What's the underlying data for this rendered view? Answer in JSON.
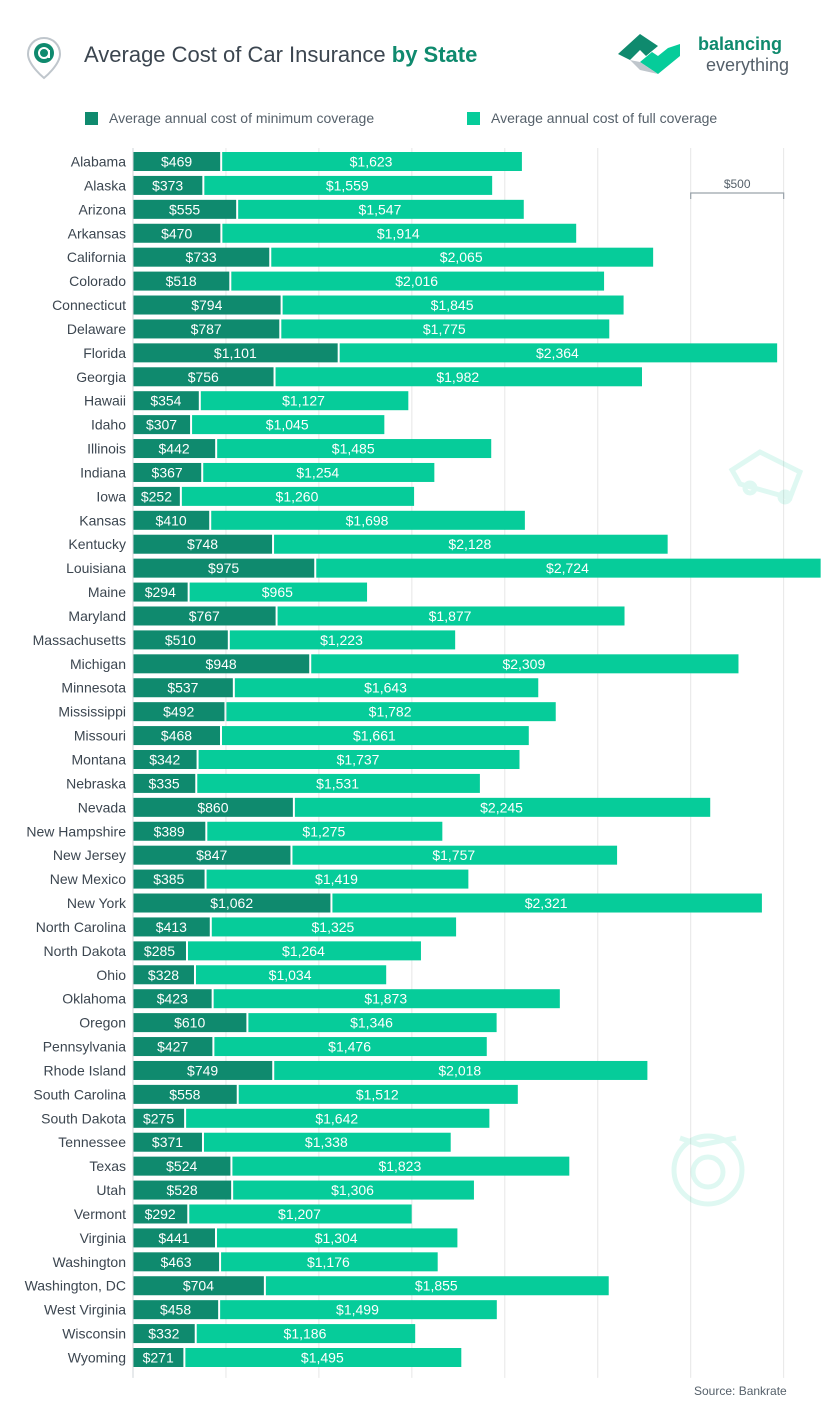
{
  "header": {
    "title_plain": "Average Cost of Car Insurance ",
    "title_bold": "by State",
    "brand_line1": "balancing",
    "brand_line2": "everything"
  },
  "source": "Source: Bankrate",
  "colors": {
    "minimum": "#0f8a6e",
    "full": "#06cc9a",
    "grid": "#e6e6e6",
    "label": "#3c4650"
  },
  "chart_data": {
    "type": "bar",
    "orientation": "horizontal",
    "stacked": true,
    "xlim": [
      0,
      3700
    ],
    "grid": true,
    "scale_reference": {
      "label": "$500",
      "value": 500
    },
    "series": [
      {
        "name": "Average annual cost of minimum coverage",
        "labels": [
          "$469",
          "$373",
          "$555",
          "$470",
          "$733",
          "$518",
          "$794",
          "$787",
          "$1,101",
          "$756",
          "$354",
          "$307",
          "$442",
          "$367",
          "$252",
          "$410",
          "$748",
          "$975",
          "$294",
          "$767",
          "$510",
          "$948",
          "$537",
          "$492",
          "$468",
          "$342",
          "$335",
          "$860",
          "$389",
          "$847",
          "$385",
          "$1,062",
          "$413",
          "$285",
          "$328",
          "$423",
          "$610",
          "$427",
          "$749",
          "$558",
          "$275",
          "$371",
          "$524",
          "$528",
          "$292",
          "$441",
          "$463",
          "$704",
          "$458",
          "$332",
          "$271"
        ],
        "values": [
          469,
          373,
          555,
          470,
          733,
          518,
          794,
          787,
          1101,
          756,
          354,
          307,
          442,
          367,
          252,
          410,
          748,
          975,
          294,
          767,
          510,
          948,
          537,
          492,
          468,
          342,
          335,
          860,
          389,
          847,
          385,
          1062,
          413,
          285,
          328,
          423,
          610,
          427,
          749,
          558,
          275,
          371,
          524,
          528,
          292,
          441,
          463,
          704,
          458,
          332,
          271
        ]
      },
      {
        "name": "Average annual cost of full coverage",
        "labels": [
          "$1,623",
          "$1,559",
          "$1,547",
          "$1,914",
          "$2,065",
          "$2,016",
          "$1,845",
          "$1,775",
          "$2,364",
          "$1,982",
          "$1,127",
          "$1,045",
          "$1,485",
          "$1,254",
          "$1,260",
          "$1,698",
          "$2,128",
          "$2,724",
          "$965",
          "$1,877",
          "$1,223",
          "$2,309",
          "$1,643",
          "$1,782",
          "$1,661",
          "$1,737",
          "$1,531",
          "$2,245",
          "$1,275",
          "$1,757",
          "$1,419",
          "$2,321",
          "$1,325",
          "$1,264",
          "$1,034",
          "$1,873",
          "$1,346",
          "$1,476",
          "$2,018",
          "$1,512",
          "$1,642",
          "$1,338",
          "$1,823",
          "$1,306",
          "$1,207",
          "$1,304",
          "$1,176",
          "$1,855",
          "$1,499",
          "$1,186",
          "$1,495"
        ],
        "values": [
          1623,
          1559,
          1547,
          1914,
          2065,
          2016,
          1845,
          1775,
          2364,
          1982,
          1127,
          1045,
          1485,
          1254,
          1260,
          1698,
          2128,
          2724,
          965,
          1877,
          1223,
          2309,
          1643,
          1782,
          1661,
          1737,
          1531,
          2245,
          1275,
          1757,
          1419,
          2321,
          1325,
          1264,
          1034,
          1873,
          1346,
          1476,
          2018,
          1512,
          1642,
          1338,
          1823,
          1306,
          1207,
          1304,
          1176,
          1855,
          1499,
          1186,
          1495
        ]
      }
    ],
    "categories": [
      "Alabama",
      "Alaska",
      "Arizona",
      "Arkansas",
      "California",
      "Colorado",
      "Connecticut",
      "Delaware",
      "Florida",
      "Georgia",
      "Hawaii",
      "Idaho",
      "Illinois",
      "Indiana",
      "Iowa",
      "Kansas",
      "Kentucky",
      "Louisiana",
      "Maine",
      "Maryland",
      "Massachusetts",
      "Michigan",
      "Minnesota",
      "Mississippi",
      "Missouri",
      "Montana",
      "Nebraska",
      "Nevada",
      "New Hampshire",
      "New Jersey",
      "New Mexico",
      "New York",
      "North Carolina",
      "North Dakota",
      "Ohio",
      "Oklahoma",
      "Oregon",
      "Pennsylvania",
      "Rhode Island",
      "South Carolina",
      "South Dakota",
      "Tennessee",
      "Texas",
      "Utah",
      "Vermont",
      "Virginia",
      "Washington",
      "Washington, DC",
      "West Virginia",
      "Wisconsin",
      "Wyoming"
    ]
  }
}
